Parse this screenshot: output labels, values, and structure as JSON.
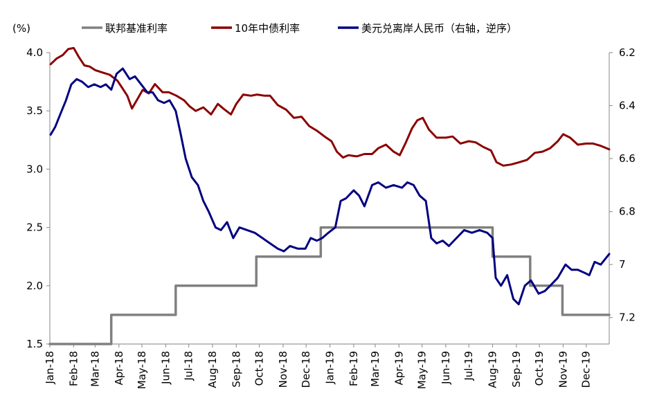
{
  "chart_data": {
    "type": "line",
    "y_unit_label": "(%)",
    "y_left_range": [
      1.5,
      4.0
    ],
    "y_left_ticks": [
      "4.0",
      "3.5",
      "3.0",
      "2.5",
      "2.0",
      "1.5"
    ],
    "y_right_range": [
      7.3,
      6.2
    ],
    "y_right_reversed": true,
    "y_right_ticks": [
      "6.2",
      "6.4",
      "6.6",
      "6.8",
      "7",
      "7.2"
    ],
    "x_range": [
      "2018-01-01",
      "2019-12-31"
    ],
    "x_ticks": [
      "Jan-18",
      "Feb-18",
      "Mar-18",
      "Apr-18",
      "May-18",
      "Jun-18",
      "Jul-18",
      "Aug-18",
      "Sep-18",
      "Oct-18",
      "Nov-18",
      "Dec-18",
      "Jan-19",
      "Feb-19",
      "Mar-19",
      "Apr-19",
      "May-19",
      "Jun-19",
      "Jul-19",
      "Aug-19",
      "Sep-19",
      "Oct-19",
      "Nov-19",
      "Dec-19"
    ],
    "legend_position": "top",
    "grid": false,
    "series": [
      {
        "name": "联邦基准利率",
        "axis": "left",
        "color": "#808080",
        "step": true,
        "points": [
          [
            "2018-01-01",
            1.5
          ],
          [
            "2018-03-22",
            1.75
          ],
          [
            "2018-06-14",
            2.0
          ],
          [
            "2018-09-27",
            2.25
          ],
          [
            "2018-12-20",
            2.5
          ],
          [
            "2019-08-01",
            2.25
          ],
          [
            "2019-09-19",
            2.0
          ],
          [
            "2019-10-31",
            1.75
          ],
          [
            "2019-12-31",
            1.75
          ]
        ]
      },
      {
        "name": "10年中债利率",
        "axis": "left",
        "color": "#8B0000",
        "points": [
          [
            "2018-01-02",
            3.9
          ],
          [
            "2018-01-10",
            3.95
          ],
          [
            "2018-01-18",
            3.98
          ],
          [
            "2018-01-25",
            4.03
          ],
          [
            "2018-02-01",
            4.04
          ],
          [
            "2018-02-08",
            3.96
          ],
          [
            "2018-02-15",
            3.89
          ],
          [
            "2018-02-22",
            3.88
          ],
          [
            "2018-03-01",
            3.85
          ],
          [
            "2018-03-10",
            3.83
          ],
          [
            "2018-03-20",
            3.81
          ],
          [
            "2018-03-30",
            3.76
          ],
          [
            "2018-04-05",
            3.7
          ],
          [
            "2018-04-12",
            3.63
          ],
          [
            "2018-04-18",
            3.52
          ],
          [
            "2018-04-25",
            3.6
          ],
          [
            "2018-05-02",
            3.68
          ],
          [
            "2018-05-10",
            3.65
          ],
          [
            "2018-05-18",
            3.73
          ],
          [
            "2018-05-28",
            3.66
          ],
          [
            "2018-06-05",
            3.66
          ],
          [
            "2018-06-15",
            3.63
          ],
          [
            "2018-06-25",
            3.59
          ],
          [
            "2018-07-02",
            3.54
          ],
          [
            "2018-07-10",
            3.5
          ],
          [
            "2018-07-20",
            3.53
          ],
          [
            "2018-07-30",
            3.47
          ],
          [
            "2018-08-08",
            3.56
          ],
          [
            "2018-08-15",
            3.52
          ],
          [
            "2018-08-25",
            3.47
          ],
          [
            "2018-09-01",
            3.56
          ],
          [
            "2018-09-10",
            3.64
          ],
          [
            "2018-09-20",
            3.63
          ],
          [
            "2018-09-28",
            3.64
          ],
          [
            "2018-10-08",
            3.63
          ],
          [
            "2018-10-15",
            3.63
          ],
          [
            "2018-10-25",
            3.55
          ],
          [
            "2018-11-05",
            3.51
          ],
          [
            "2018-11-15",
            3.44
          ],
          [
            "2018-11-25",
            3.45
          ],
          [
            "2018-12-05",
            3.37
          ],
          [
            "2018-12-15",
            3.33
          ],
          [
            "2018-12-25",
            3.28
          ],
          [
            "2019-01-03",
            3.24
          ],
          [
            "2019-01-10",
            3.15
          ],
          [
            "2019-01-18",
            3.1
          ],
          [
            "2019-01-25",
            3.12
          ],
          [
            "2019-02-05",
            3.11
          ],
          [
            "2019-02-15",
            3.13
          ],
          [
            "2019-02-25",
            3.13
          ],
          [
            "2019-03-05",
            3.18
          ],
          [
            "2019-03-15",
            3.21
          ],
          [
            "2019-03-25",
            3.15
          ],
          [
            "2019-04-02",
            3.12
          ],
          [
            "2019-04-10",
            3.23
          ],
          [
            "2019-04-18",
            3.35
          ],
          [
            "2019-04-25",
            3.42
          ],
          [
            "2019-05-02",
            3.44
          ],
          [
            "2019-05-10",
            3.34
          ],
          [
            "2019-05-20",
            3.27
          ],
          [
            "2019-06-01",
            3.27
          ],
          [
            "2019-06-10",
            3.28
          ],
          [
            "2019-06-20",
            3.22
          ],
          [
            "2019-07-01",
            3.24
          ],
          [
            "2019-07-10",
            3.23
          ],
          [
            "2019-07-20",
            3.19
          ],
          [
            "2019-07-30",
            3.16
          ],
          [
            "2019-08-06",
            3.06
          ],
          [
            "2019-08-15",
            3.03
          ],
          [
            "2019-08-25",
            3.04
          ],
          [
            "2019-09-05",
            3.06
          ],
          [
            "2019-09-15",
            3.08
          ],
          [
            "2019-09-25",
            3.14
          ],
          [
            "2019-10-05",
            3.15
          ],
          [
            "2019-10-15",
            3.18
          ],
          [
            "2019-10-25",
            3.24
          ],
          [
            "2019-11-01",
            3.3
          ],
          [
            "2019-11-10",
            3.27
          ],
          [
            "2019-11-20",
            3.21
          ],
          [
            "2019-12-01",
            3.22
          ],
          [
            "2019-12-10",
            3.22
          ],
          [
            "2019-12-20",
            3.2
          ],
          [
            "2019-12-31",
            3.17
          ]
        ]
      },
      {
        "name": "美元兑离岸人民币（右轴，逆序）",
        "axis": "right",
        "color": "#000080",
        "points": [
          [
            "2018-01-02",
            6.51
          ],
          [
            "2018-01-08",
            6.48
          ],
          [
            "2018-01-15",
            6.43
          ],
          [
            "2018-01-22",
            6.38
          ],
          [
            "2018-01-29",
            6.32
          ],
          [
            "2018-02-05",
            6.3
          ],
          [
            "2018-02-12",
            6.31
          ],
          [
            "2018-02-20",
            6.33
          ],
          [
            "2018-02-28",
            6.32
          ],
          [
            "2018-03-08",
            6.33
          ],
          [
            "2018-03-15",
            6.32
          ],
          [
            "2018-03-22",
            6.34
          ],
          [
            "2018-03-29",
            6.28
          ],
          [
            "2018-04-06",
            6.26
          ],
          [
            "2018-04-15",
            6.3
          ],
          [
            "2018-04-22",
            6.29
          ],
          [
            "2018-04-30",
            6.32
          ],
          [
            "2018-05-08",
            6.35
          ],
          [
            "2018-05-15",
            6.35
          ],
          [
            "2018-05-22",
            6.38
          ],
          [
            "2018-05-30",
            6.39
          ],
          [
            "2018-06-06",
            6.38
          ],
          [
            "2018-06-14",
            6.42
          ],
          [
            "2018-06-20",
            6.5
          ],
          [
            "2018-06-27",
            6.6
          ],
          [
            "2018-07-05",
            6.67
          ],
          [
            "2018-07-13",
            6.7
          ],
          [
            "2018-07-20",
            6.76
          ],
          [
            "2018-07-27",
            6.8
          ],
          [
            "2018-08-05",
            6.86
          ],
          [
            "2018-08-12",
            6.87
          ],
          [
            "2018-08-20",
            6.84
          ],
          [
            "2018-08-28",
            6.9
          ],
          [
            "2018-09-05",
            6.86
          ],
          [
            "2018-09-15",
            6.87
          ],
          [
            "2018-09-25",
            6.88
          ],
          [
            "2018-10-05",
            6.9
          ],
          [
            "2018-10-15",
            6.92
          ],
          [
            "2018-10-25",
            6.94
          ],
          [
            "2018-11-02",
            6.95
          ],
          [
            "2018-11-10",
            6.93
          ],
          [
            "2018-11-20",
            6.94
          ],
          [
            "2018-11-30",
            6.94
          ],
          [
            "2018-12-07",
            6.9
          ],
          [
            "2018-12-15",
            6.91
          ],
          [
            "2018-12-22",
            6.9
          ],
          [
            "2018-12-30",
            6.88
          ],
          [
            "2019-01-08",
            6.86
          ],
          [
            "2019-01-15",
            6.76
          ],
          [
            "2019-01-22",
            6.75
          ],
          [
            "2019-02-01",
            6.72
          ],
          [
            "2019-02-08",
            6.74
          ],
          [
            "2019-02-15",
            6.78
          ],
          [
            "2019-02-25",
            6.7
          ],
          [
            "2019-03-05",
            6.69
          ],
          [
            "2019-03-15",
            6.71
          ],
          [
            "2019-03-25",
            6.7
          ],
          [
            "2019-04-05",
            6.71
          ],
          [
            "2019-04-12",
            6.69
          ],
          [
            "2019-04-20",
            6.7
          ],
          [
            "2019-04-28",
            6.74
          ],
          [
            "2019-05-06",
            6.76
          ],
          [
            "2019-05-13",
            6.9
          ],
          [
            "2019-05-20",
            6.92
          ],
          [
            "2019-05-28",
            6.91
          ],
          [
            "2019-06-05",
            6.93
          ],
          [
            "2019-06-15",
            6.9
          ],
          [
            "2019-06-25",
            6.87
          ],
          [
            "2019-07-05",
            6.88
          ],
          [
            "2019-07-15",
            6.87
          ],
          [
            "2019-07-25",
            6.88
          ],
          [
            "2019-08-01",
            6.9
          ],
          [
            "2019-08-05",
            7.05
          ],
          [
            "2019-08-12",
            7.08
          ],
          [
            "2019-08-20",
            7.04
          ],
          [
            "2019-08-28",
            7.13
          ],
          [
            "2019-09-04",
            7.15
          ],
          [
            "2019-09-12",
            7.08
          ],
          [
            "2019-09-20",
            7.06
          ],
          [
            "2019-09-30",
            7.11
          ],
          [
            "2019-10-08",
            7.1
          ],
          [
            "2019-10-15",
            7.08
          ],
          [
            "2019-10-25",
            7.05
          ],
          [
            "2019-11-04",
            7.0
          ],
          [
            "2019-11-12",
            7.02
          ],
          [
            "2019-11-20",
            7.02
          ],
          [
            "2019-11-28",
            7.03
          ],
          [
            "2019-12-05",
            7.04
          ],
          [
            "2019-12-12",
            6.99
          ],
          [
            "2019-12-20",
            7.0
          ],
          [
            "2019-12-31",
            6.96
          ]
        ]
      }
    ]
  }
}
